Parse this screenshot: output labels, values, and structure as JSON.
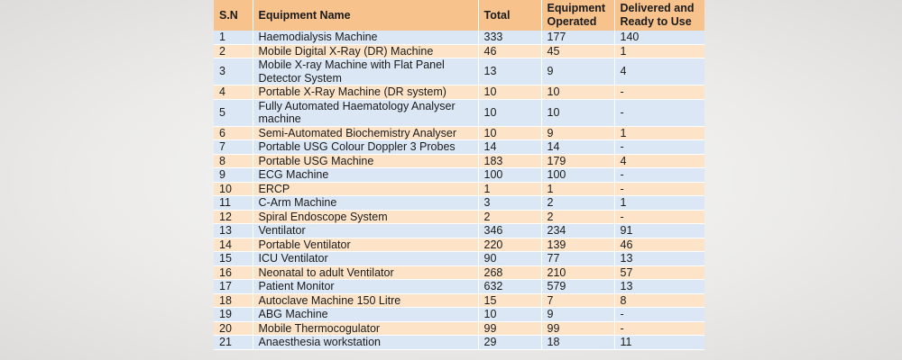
{
  "table": {
    "headers": {
      "sn": "S.N",
      "name": "Equipment Name",
      "total": "Total",
      "operated_line1": "Equipment",
      "operated_line2": "Operated",
      "delivered_line1": "Delivered and",
      "delivered_line2": "Ready to Use"
    },
    "rows": [
      {
        "sn": "1",
        "name": "Haemodialysis Machine",
        "total": "333",
        "operated": "177",
        "delivered": "140"
      },
      {
        "sn": "2",
        "name": "Mobile Digital X-Ray (DR) Machine",
        "total": "46",
        "operated": "45",
        "delivered": "1"
      },
      {
        "sn": "3",
        "name": "Mobile X-ray Machine with Flat Panel Detector System",
        "total": "13",
        "operated": "9",
        "delivered": "4"
      },
      {
        "sn": "4",
        "name": "Portable X-Ray Machine (DR system)",
        "total": "10",
        "operated": "10",
        "delivered": "-"
      },
      {
        "sn": "5",
        "name": "Fully Automated Haematology Analyser machine",
        "total": "10",
        "operated": "10",
        "delivered": "-"
      },
      {
        "sn": "6",
        "name": "Semi-Automated Biochemistry Analyser",
        "total": "10",
        "operated": "9",
        "delivered": "1"
      },
      {
        "sn": "7",
        "name": "Portable USG Colour Doppler 3 Probes",
        "total": "14",
        "operated": "14",
        "delivered": "-"
      },
      {
        "sn": "8",
        "name": "Portable USG Machine",
        "total": "183",
        "operated": "179",
        "delivered": "4"
      },
      {
        "sn": "9",
        "name": "ECG Machine",
        "total": "100",
        "operated": "100",
        "delivered": "-"
      },
      {
        "sn": "10",
        "name": "ERCP",
        "total": "1",
        "operated": "1",
        "delivered": "-"
      },
      {
        "sn": "11",
        "name": "C-Arm Machine",
        "total": "3",
        "operated": "2",
        "delivered": "1"
      },
      {
        "sn": "12",
        "name": "Spiral Endoscope System",
        "total": "2",
        "operated": "2",
        "delivered": "-"
      },
      {
        "sn": "13",
        "name": "Ventilator",
        "total": "346",
        "operated": "234",
        "delivered": "91"
      },
      {
        "sn": "14",
        "name": "Portable Ventilator",
        "total": "220",
        "operated": "139",
        "delivered": "46"
      },
      {
        "sn": "15",
        "name": "ICU Ventilator",
        "total": "90",
        "operated": "77",
        "delivered": "13"
      },
      {
        "sn": "16",
        "name": "Neonatal to adult Ventilator",
        "total": "268",
        "operated": "210",
        "delivered": "57"
      },
      {
        "sn": "17",
        "name": "Patient Monitor",
        "total": "632",
        "operated": "579",
        "delivered": "13"
      },
      {
        "sn": "18",
        "name": "Autoclave Machine 150 Litre",
        "total": "15",
        "operated": "7",
        "delivered": "8"
      },
      {
        "sn": "19",
        "name": "ABG Machine",
        "total": "10",
        "operated": "9",
        "delivered": "-"
      },
      {
        "sn": "20",
        "name": "Mobile Thermocogulator",
        "total": "99",
        "operated": "99",
        "delivered": "-"
      },
      {
        "sn": "21",
        "name": "Anaesthesia workstation",
        "total": "29",
        "operated": "18",
        "delivered": "11"
      }
    ]
  }
}
